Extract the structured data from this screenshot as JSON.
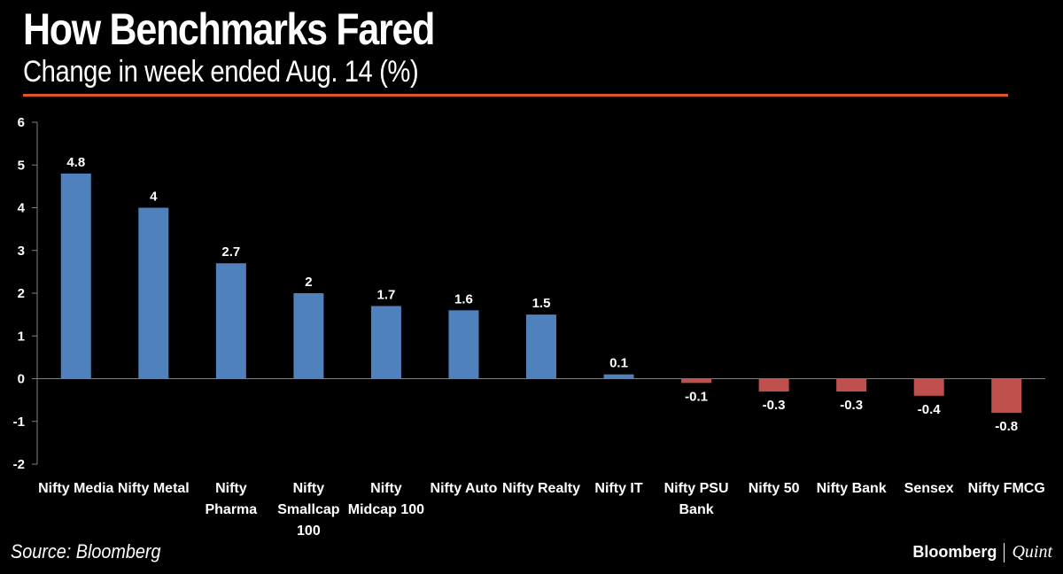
{
  "header": {
    "title": "How Benchmarks Fared",
    "subtitle": "Change in week ended Aug. 14 (%)",
    "rule_color": "#e8522a"
  },
  "footer": {
    "source": "Source: Bloomberg",
    "logo_primary": "Bloomberg",
    "logo_secondary": "Quint"
  },
  "chart_data": {
    "type": "bar",
    "title": "How Benchmarks Fared",
    "subtitle": "Change in week ended Aug. 14 (%)",
    "xlabel": "",
    "ylabel": "",
    "ylim": [
      -2,
      6
    ],
    "yticks": [
      6,
      5,
      4,
      3,
      2,
      1,
      0,
      -1,
      -2
    ],
    "grid": false,
    "legend": "none",
    "positive_color": "#4f81bd",
    "negative_color": "#c0504d",
    "categories": [
      [
        "Nifty Media"
      ],
      [
        "Nifty Metal"
      ],
      [
        "Nifty",
        "Pharma"
      ],
      [
        "Nifty",
        "Smallcap",
        "100"
      ],
      [
        "Nifty",
        "Midcap 100"
      ],
      [
        "Nifty Auto"
      ],
      [
        "Nifty Realty"
      ],
      [
        "Nifty IT"
      ],
      [
        "Nifty PSU",
        "Bank"
      ],
      [
        "Nifty 50"
      ],
      [
        "Nifty Bank"
      ],
      [
        "Sensex"
      ],
      [
        "Nifty FMCG"
      ]
    ],
    "values": [
      4.8,
      4,
      2.7,
      2,
      1.7,
      1.6,
      1.5,
      0.1,
      -0.1,
      -0.3,
      -0.3,
      -0.4,
      -0.8
    ],
    "value_labels": [
      "4.8",
      "4",
      "2.7",
      "2",
      "1.7",
      "1.6",
      "1.5",
      "0.1",
      "-0.1",
      "-0.3",
      "-0.3",
      "-0.4",
      "-0.8"
    ]
  }
}
